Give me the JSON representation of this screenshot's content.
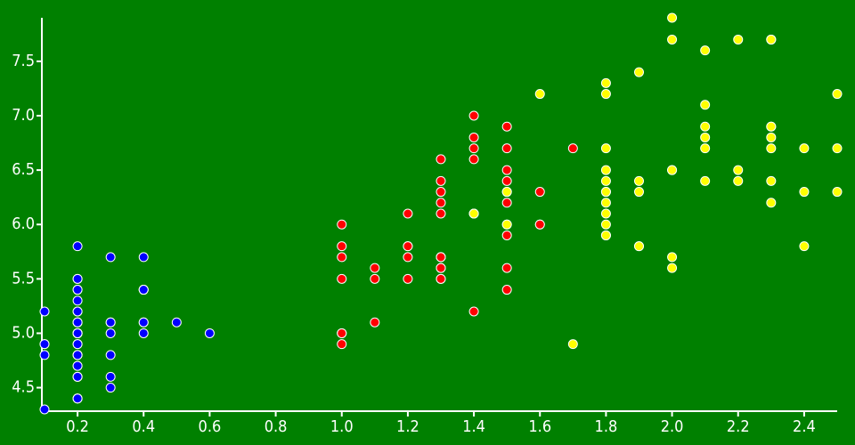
{
  "chart_data": {
    "type": "scatter",
    "xlim": [
      0.1,
      2.5
    ],
    "ylim": [
      4.3,
      7.9
    ],
    "xticks": [
      0.2,
      0.4,
      0.6,
      0.8,
      {
        "value": 1,
        "label": "1.0"
      },
      1.2,
      1.4,
      1.6,
      1.8,
      {
        "value": 2,
        "label": "2.0"
      },
      2.2,
      2.4
    ],
    "yticks": [
      4.5,
      {
        "value": 5,
        "label": "5.0"
      },
      5.5,
      {
        "value": 6,
        "label": "6.0"
      },
      6.5,
      {
        "value": 7,
        "label": "7.0"
      },
      7.5
    ],
    "grid": false,
    "series": [
      {
        "color": "#0000ff",
        "x": [
          0.2,
          0.2,
          0.2,
          0.2,
          0.2,
          0.4,
          0.3,
          0.2,
          0.2,
          0.1,
          0.2,
          0.2,
          0.1,
          0.1,
          0.2,
          0.4,
          0.4,
          0.3,
          0.3,
          0.3,
          0.2,
          0.4,
          0.2,
          0.5,
          0.2,
          0.2,
          0.4,
          0.2,
          0.2,
          0.2,
          0.2,
          0.4,
          0.1,
          0.2,
          0.2,
          0.2,
          0.2,
          0.1,
          0.2,
          0.2,
          0.3,
          0.3,
          0.2,
          0.6,
          0.4,
          0.3,
          0.2,
          0.2,
          0.2,
          0.2
        ],
        "y": [
          5.1,
          4.9,
          4.7,
          4.6,
          5.0,
          5.4,
          4.6,
          5.0,
          4.4,
          4.9,
          5.4,
          4.8,
          4.8,
          4.3,
          5.8,
          5.7,
          5.4,
          5.1,
          5.7,
          5.1,
          5.4,
          5.1,
          4.6,
          5.1,
          4.8,
          5.0,
          5.0,
          5.2,
          5.2,
          4.7,
          4.8,
          5.4,
          5.2,
          5.5,
          4.9,
          5.0,
          5.5,
          4.9,
          4.4,
          5.1,
          5.0,
          4.5,
          4.4,
          5.0,
          5.1,
          4.8,
          5.1,
          4.6,
          5.3,
          5.0
        ]
      },
      {
        "color": "#ff0000",
        "x": [
          1.4,
          1.5,
          1.5,
          1.3,
          1.5,
          1.3,
          1.6,
          1.0,
          1.3,
          1.4,
          1.0,
          1.5,
          1.0,
          1.4,
          1.3,
          1.4,
          1.5,
          1.0,
          1.5,
          1.1,
          1.8,
          1.3,
          1.5,
          1.2,
          1.3,
          1.4,
          1.4,
          1.7,
          1.5,
          1.0,
          1.1,
          1.0,
          1.2,
          1.6,
          1.5,
          1.6,
          1.5,
          1.3,
          1.3,
          1.3,
          1.2,
          1.4,
          1.2,
          1.0,
          1.3,
          1.2,
          1.3,
          1.3,
          1.1,
          1.3
        ],
        "y": [
          7.0,
          6.4,
          6.9,
          5.5,
          6.5,
          5.7,
          6.3,
          4.9,
          6.6,
          5.2,
          5.0,
          5.9,
          6.0,
          6.1,
          5.6,
          6.7,
          5.6,
          5.8,
          6.2,
          5.6,
          5.9,
          6.1,
          6.3,
          6.1,
          6.4,
          6.6,
          6.8,
          6.7,
          6.0,
          5.7,
          5.5,
          5.5,
          5.8,
          6.0,
          5.4,
          6.0,
          6.7,
          6.3,
          5.6,
          5.5,
          5.5,
          6.1,
          5.8,
          5.0,
          5.6,
          5.7,
          5.7,
          6.2,
          5.1,
          5.7
        ]
      },
      {
        "color": "#ffff00",
        "x": [
          2.5,
          1.9,
          2.1,
          1.8,
          2.2,
          2.1,
          1.7,
          1.8,
          1.8,
          2.5,
          2.0,
          1.9,
          2.1,
          2.0,
          2.4,
          2.3,
          1.8,
          2.2,
          2.3,
          1.5,
          2.3,
          2.0,
          2.0,
          1.8,
          2.1,
          1.8,
          1.8,
          1.8,
          2.1,
          1.6,
          1.9,
          2.0,
          2.2,
          1.5,
          1.4,
          2.3,
          2.4,
          1.8,
          1.8,
          2.1,
          2.4,
          2.3,
          1.9,
          2.3,
          2.5,
          2.3,
          1.9,
          2.0,
          2.3,
          1.8
        ],
        "y": [
          6.3,
          5.8,
          7.1,
          6.3,
          6.5,
          7.6,
          4.9,
          7.3,
          6.7,
          7.2,
          6.5,
          6.4,
          6.8,
          5.7,
          5.8,
          6.4,
          6.5,
          7.7,
          7.7,
          6.0,
          6.9,
          5.6,
          7.7,
          6.3,
          6.7,
          7.2,
          6.2,
          6.1,
          6.4,
          7.2,
          7.4,
          7.9,
          6.4,
          6.3,
          6.1,
          7.7,
          6.3,
          6.4,
          6.0,
          6.9,
          6.7,
          6.9,
          5.8,
          6.8,
          6.7,
          6.7,
          6.3,
          6.5,
          6.2,
          5.9
        ]
      }
    ]
  }
}
